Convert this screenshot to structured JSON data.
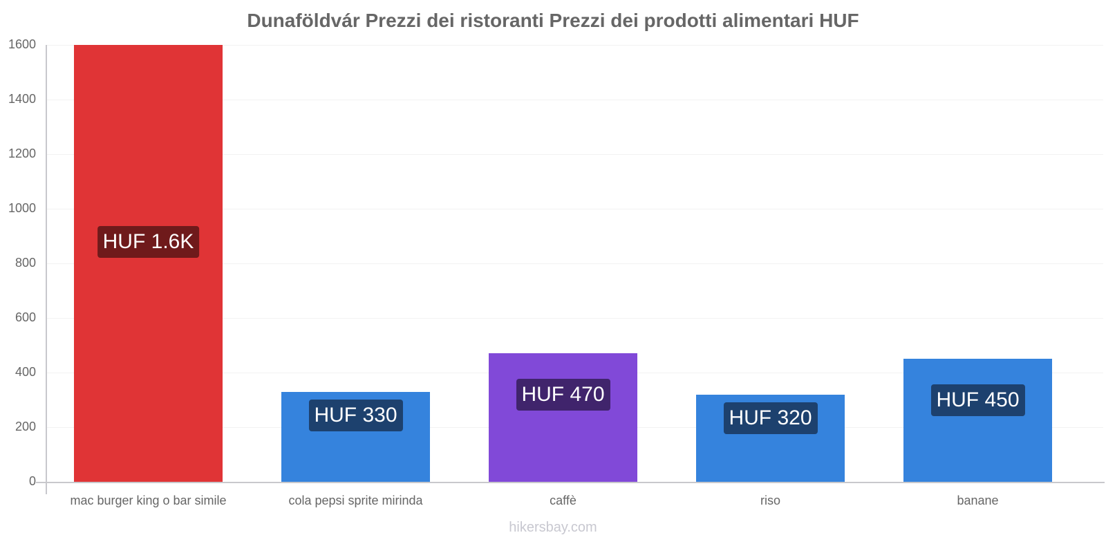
{
  "title": "Dunaföldvár Prezzi dei ristoranti Prezzi dei prodotti alimentari HUF",
  "watermark": "hikersbay.com",
  "y_ticks": [
    "0",
    "200",
    "400",
    "600",
    "800",
    "1000",
    "1200",
    "1400",
    "1600"
  ],
  "bars": [
    {
      "category": "mac burger king o bar simile",
      "label": "HUF 1.6K",
      "value": 1600,
      "color": "#e03436",
      "label_bg": "#6f1a1b"
    },
    {
      "category": "cola pepsi sprite mirinda",
      "label": "HUF 330",
      "value": 330,
      "color": "#3583dd",
      "label_bg": "#1d416e"
    },
    {
      "category": "caffè",
      "label": "HUF 470",
      "value": 470,
      "color": "#8149d8",
      "label_bg": "#40246c"
    },
    {
      "category": "riso",
      "label": "HUF 320",
      "value": 320,
      "color": "#3583dd",
      "label_bg": "#1d416e"
    },
    {
      "category": "banane",
      "label": "HUF 450",
      "value": 450,
      "color": "#3583dd",
      "label_bg": "#1d416e"
    }
  ],
  "chart_data": {
    "type": "bar",
    "title": "Dunaföldvár Prezzi dei ristoranti Prezzi dei prodotti alimentari HUF",
    "categories": [
      "mac burger king o bar simile",
      "cola pepsi sprite mirinda",
      "caffè",
      "riso",
      "banane"
    ],
    "values": [
      1600,
      330,
      470,
      320,
      450
    ],
    "data_labels": [
      "HUF 1.6K",
      "HUF 330",
      "HUF 470",
      "HUF 320",
      "HUF 450"
    ],
    "colors": [
      "#e03436",
      "#3583dd",
      "#8149d8",
      "#3583dd",
      "#3583dd"
    ],
    "xlabel": "",
    "ylabel": "",
    "ylim": [
      0,
      1600
    ],
    "yticks": [
      0,
      200,
      400,
      600,
      800,
      1000,
      1200,
      1400,
      1600
    ],
    "grid": true,
    "legend": "none"
  }
}
